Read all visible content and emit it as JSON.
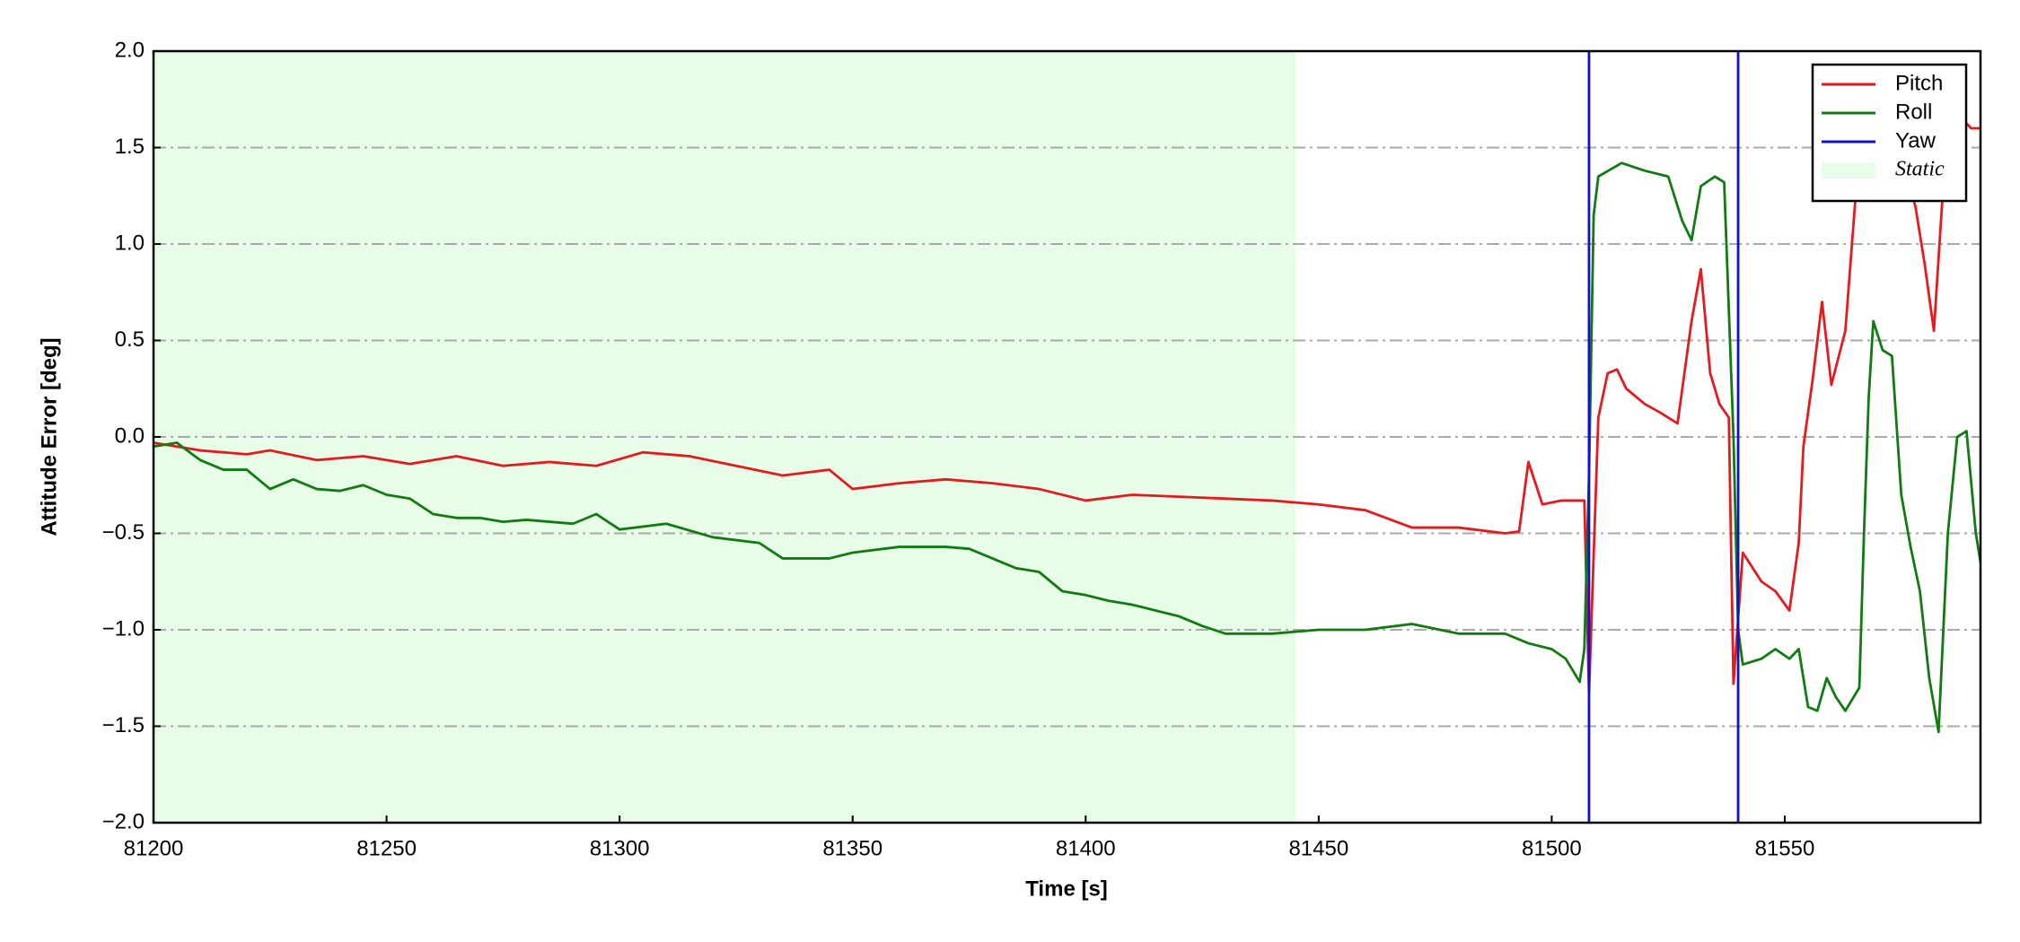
{
  "chart_data": {
    "type": "line",
    "xlabel": "Time [s]",
    "ylabel": "Attitude Error [deg]",
    "xlim": [
      81200,
      81592
    ],
    "ylim": [
      -2.0,
      2.0
    ],
    "xticks": [
      81200,
      81250,
      81300,
      81350,
      81400,
      81450,
      81500,
      81550
    ],
    "yticks": [
      {
        "value": -2.0,
        "label": "−2.0"
      },
      {
        "value": -1.5,
        "label": "−1.5"
      },
      {
        "value": -1.0,
        "label": "−1.0"
      },
      {
        "value": -0.5,
        "label": "−0.5"
      },
      {
        "value": 0,
        "label": "0.0"
      },
      0.5,
      {
        "value": 1.0,
        "label": "1.0"
      },
      1.5,
      {
        "value": 2.0,
        "label": "2.0"
      }
    ],
    "grid": true,
    "legend": "upper right",
    "static_region": {
      "name": "Static",
      "xlim": [
        81200,
        81445
      ],
      "color": "#e8fde8"
    },
    "series": [
      {
        "name": "Pitch",
        "color": "#e41a1c",
        "x": [
          81200,
          81210,
          81220,
          81225,
          81235,
          81245,
          81255,
          81265,
          81275,
          81285,
          81295,
          81305,
          81315,
          81325,
          81335,
          81345,
          81350,
          81360,
          81370,
          81380,
          81390,
          81400,
          81410,
          81420,
          81430,
          81440,
          81450,
          81460,
          81470,
          81480,
          81490,
          81493,
          81495,
          81498,
          81502,
          81505,
          81507,
          81508,
          81510,
          81512,
          81514,
          81516,
          81520,
          81523,
          81527,
          81530,
          81532,
          81534,
          81536,
          81538,
          81539,
          81541,
          81545,
          81548,
          81551,
          81553,
          81554,
          81556,
          81558,
          81560,
          81563,
          81566,
          81568,
          81578,
          81580,
          81582,
          81584,
          81586,
          81590,
          81592
        ],
        "values": [
          -0.03,
          -0.07,
          -0.09,
          -0.07,
          -0.12,
          -0.1,
          -0.14,
          -0.1,
          -0.15,
          -0.13,
          -0.15,
          -0.08,
          -0.1,
          -0.15,
          -0.2,
          -0.17,
          -0.27,
          -0.24,
          -0.22,
          -0.24,
          -0.27,
          -0.33,
          -0.3,
          -0.31,
          -0.32,
          -0.33,
          -0.35,
          -0.38,
          -0.47,
          -0.47,
          -0.5,
          -0.49,
          -0.13,
          -0.35,
          -0.33,
          -0.33,
          -0.33,
          -1.33,
          0.1,
          0.33,
          0.35,
          0.25,
          0.17,
          0.13,
          0.07,
          0.6,
          0.87,
          0.33,
          0.17,
          0.1,
          -1.28,
          -0.6,
          -0.75,
          -0.8,
          -0.9,
          -0.55,
          -0.05,
          0.3,
          0.7,
          0.27,
          0.55,
          1.5,
          1.9,
          1.2,
          0.9,
          0.55,
          1.3,
          1.7,
          1.6,
          1.6
        ]
      },
      {
        "name": "Roll",
        "color": "#117a11",
        "x": [
          81200,
          81205,
          81210,
          81215,
          81220,
          81225,
          81230,
          81235,
          81240,
          81245,
          81250,
          81255,
          81260,
          81265,
          81270,
          81275,
          81280,
          81290,
          81295,
          81300,
          81310,
          81320,
          81330,
          81335,
          81345,
          81350,
          81360,
          81370,
          81375,
          81385,
          81390,
          81395,
          81400,
          81405,
          81410,
          81415,
          81420,
          81425,
          81430,
          81440,
          81450,
          81460,
          81470,
          81480,
          81490,
          81495,
          81500,
          81503,
          81506,
          81507,
          81508,
          81509,
          81510,
          81515,
          81520,
          81525,
          81528,
          81530,
          81532,
          81535,
          81537,
          81539,
          81540,
          81541,
          81545,
          81548,
          81551,
          81553,
          81555,
          81557,
          81559,
          81561,
          81563,
          81566,
          81567,
          81568,
          81569,
          81571,
          81573,
          81575,
          81577,
          81579,
          81581,
          81583,
          81585,
          81587,
          81589,
          81591,
          81592
        ],
        "values": [
          -0.05,
          -0.03,
          -0.12,
          -0.17,
          -0.17,
          -0.27,
          -0.22,
          -0.27,
          -0.28,
          -0.25,
          -0.3,
          -0.32,
          -0.4,
          -0.42,
          -0.42,
          -0.44,
          -0.43,
          -0.45,
          -0.4,
          -0.48,
          -0.45,
          -0.52,
          -0.55,
          -0.63,
          -0.63,
          -0.6,
          -0.57,
          -0.57,
          -0.58,
          -0.68,
          -0.7,
          -0.8,
          -0.82,
          -0.85,
          -0.87,
          -0.9,
          -0.93,
          -0.98,
          -1.02,
          -1.02,
          -1.0,
          -1.0,
          -0.97,
          -1.02,
          -1.02,
          -1.07,
          -1.1,
          -1.15,
          -1.27,
          -1.1,
          -0.2,
          1.15,
          1.35,
          1.42,
          1.38,
          1.35,
          1.12,
          1.02,
          1.3,
          1.35,
          1.32,
          0.0,
          -1.0,
          -1.18,
          -1.15,
          -1.1,
          -1.15,
          -1.1,
          -1.4,
          -1.42,
          -1.25,
          -1.35,
          -1.42,
          -1.3,
          -0.5,
          0.2,
          0.6,
          0.45,
          0.42,
          -0.3,
          -0.57,
          -0.8,
          -1.25,
          -1.53,
          -0.5,
          0.0,
          0.03,
          -0.5,
          -0.65
        ]
      },
      {
        "name": "Yaw",
        "color": "#1010d0",
        "x": [
          81508,
          81508,
          81524,
          81540,
          81540
        ],
        "values": [
          -2.0,
          2.0,
          null,
          2.0,
          -2.0
        ]
      }
    ]
  }
}
